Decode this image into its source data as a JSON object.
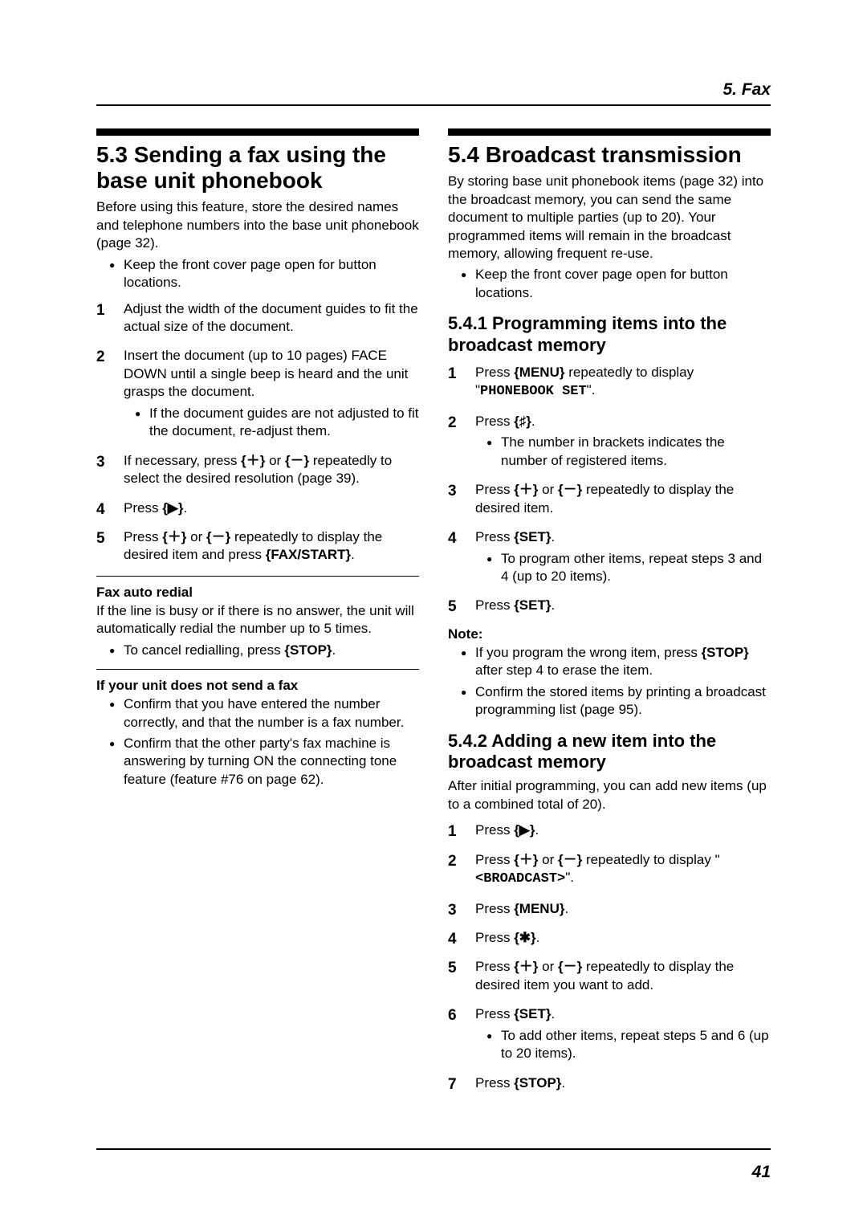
{
  "chapter": "5. Fax",
  "page_number": "41",
  "left": {
    "heading": "5.3 Sending a fax using the base unit phonebook",
    "intro": "Before using this feature, store the desired names and telephone numbers into the base unit phonebook (page 32).",
    "pre_bullet": "Keep the front cover page open for button locations.",
    "steps": {
      "s1_a": "Adjust the width of the document guides to fit the actual size of the document.",
      "s2_a": "Insert the document (up to 10 pages) FACE DOWN until a single beep is heard and the unit grasps the document.",
      "s2_sub": "If the document guides are not adjusted to fit the document, re-adjust them.",
      "s3_a": "If necessary, press ",
      "s3_b": " or ",
      "s3_c": " repeatedly to select the desired resolution (page 39).",
      "s4_a": "Press ",
      "s4_b": ".",
      "s5_a": "Press ",
      "s5_b": " or ",
      "s5_c": " repeatedly to display the desired item and press ",
      "s5_d": "."
    },
    "redial_heading": "Fax auto redial",
    "redial_text": "If the line is busy or if there is no answer, the unit will automatically redial the number up to 5 times.",
    "redial_bullet_a": "To cancel redialling, press ",
    "redial_bullet_b": ".",
    "nosend_heading": "If your unit does not send a fax",
    "nosend_b1": "Confirm that you have entered the number correctly, and that the number is a fax number.",
    "nosend_b2": "Confirm that the other party's fax machine is answering by turning ON the connecting tone feature (feature #76 on page 62)."
  },
  "right": {
    "heading": "5.4 Broadcast transmission",
    "intro": "By storing base unit phonebook items (page 32) into the broadcast memory, you can send the same document to multiple parties (up to 20). Your programmed items will remain in the broadcast memory, allowing frequent re-use.",
    "pre_bullet": "Keep the front cover page open for button locations.",
    "sub1_heading": "5.4.1 Programming items into the broadcast memory",
    "sub1_steps": {
      "s1_a": "Press ",
      "s1_b": " repeatedly to display \"",
      "s1_c": "\".",
      "s1_display": "PHONEBOOK SET",
      "s2_a": "Press ",
      "s2_b": ".",
      "s2_sub": "The number in brackets indicates the number of registered items.",
      "s3_a": "Press ",
      "s3_b": " or ",
      "s3_c": " repeatedly to display the desired item.",
      "s4_a": "Press ",
      "s4_b": ".",
      "s4_sub": "To program other items, repeat steps 3 and 4 (up to 20 items).",
      "s5_a": "Press ",
      "s5_b": "."
    },
    "note_heading": "Note:",
    "note_b1_a": "If you program the wrong item, press ",
    "note_b1_b": " after step 4 to erase the item.",
    "note_b2": "Confirm the stored items by printing a broadcast programming list (page 95).",
    "sub2_heading": "5.4.2 Adding a new item into the broadcast memory",
    "sub2_intro": "After initial programming, you can add new items (up to a combined total of 20).",
    "sub2_steps": {
      "s1_a": "Press ",
      "s1_b": ".",
      "s2_a": "Press ",
      "s2_b": " or ",
      "s2_c": " repeatedly to display \"",
      "s2_d": "\".",
      "s2_display": "<BROADCAST>",
      "s3_a": "Press ",
      "s3_b": ".",
      "s4_a": "Press ",
      "s4_b": ".",
      "s5_a": "Press ",
      "s5_b": " or ",
      "s5_c": " repeatedly to display the desired item you want to add.",
      "s6_a": "Press ",
      "s6_b": ".",
      "s6_sub": "To add other items, repeat steps 5 and 6 (up to 20 items).",
      "s7_a": "Press ",
      "s7_b": "."
    }
  },
  "buttons": {
    "plus": "{＋}",
    "minus": "{－}",
    "right": "{▶}",
    "faxstart": "{FAX/START}",
    "stop": "{STOP}",
    "menu": "{MENU}",
    "hash": "{♯}",
    "set": "{SET}",
    "star": "{✱}"
  }
}
